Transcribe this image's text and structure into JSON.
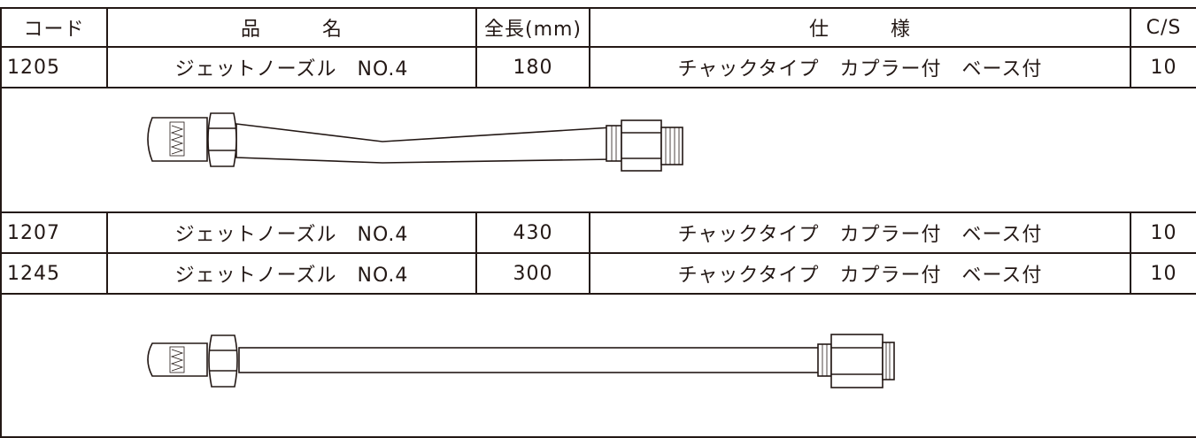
{
  "table": {
    "header": [
      "コード",
      "品　　　名",
      "全長(mm)",
      "仕　　　様",
      "C/S"
    ],
    "rows": [
      [
        "1205",
        "ジェットノーズル　NO.4",
        "180",
        "チャックタイプ　カプラー付　ベース付",
        "10"
      ],
      [
        "1207",
        "ジェットノーズル　NO.4",
        "430",
        "チャックタイプ　カプラー付　ベース付",
        "10"
      ],
      [
        "1245",
        "ジェットノーズル　NO.4",
        "300",
        "チャックタイプ　カプラー付　ベース付",
        "10"
      ]
    ]
  }
}
